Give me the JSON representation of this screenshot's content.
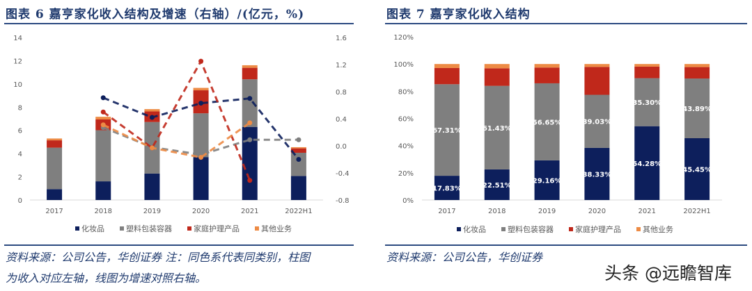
{
  "left": {
    "title": "图表 6   嘉亨家化收入结构及增速（右轴）/(亿元，%)",
    "source_line1": "资料来源：公司公告，华创证券 注：同色系代表同类别，柱图",
    "source_line2": "为收入对应左轴，线图为增速对照右轴。"
  },
  "right": {
    "title": "图表 7   嘉亨家化收入结构",
    "source": "资料来源：公司公告，华创证券"
  },
  "watermark": "头条 @远瞻智库",
  "colors": {
    "cosmetics": "#0d1f5c",
    "plastic": "#7f7f7f",
    "household": "#c0281b",
    "other": "#ed8b45"
  },
  "chart_data": [
    {
      "type": "bar+line",
      "stacked": true,
      "categories": [
        "2017",
        "2018",
        "2019",
        "2020",
        "2021",
        "2022H1"
      ],
      "series": [
        {
          "name": "化妆品",
          "values": [
            0.94,
            1.61,
            2.28,
            3.7,
            6.3,
            2.07
          ]
        },
        {
          "name": "塑料包装容器",
          "values": [
            3.57,
            4.4,
            4.44,
            3.77,
            4.1,
            2.0
          ]
        },
        {
          "name": "家庭护理产品",
          "values": [
            0.63,
            0.93,
            0.91,
            1.98,
            0.99,
            0.38
          ]
        },
        {
          "name": "其他业务",
          "values": [
            0.16,
            0.23,
            0.2,
            0.21,
            0.22,
            0.1
          ]
        }
      ],
      "growth_series": [
        {
          "values": [
            null,
            0.71,
            0.42,
            0.63,
            0.7,
            -0.2
          ]
        },
        {
          "values": [
            null,
            0.27,
            -0.02,
            -0.13,
            0.09,
            0.09
          ]
        },
        {
          "values": [
            null,
            0.5,
            -0.03,
            1.25,
            -0.51,
            null
          ]
        },
        {
          "values": [
            null,
            0.31,
            -0.03,
            -0.17,
            0.34,
            null
          ]
        }
      ],
      "ylim": [
        0,
        14
      ],
      "yticks": [
        "0",
        "2",
        "4",
        "6",
        "8",
        "10",
        "12",
        "14"
      ],
      "y2lim": [
        -0.8,
        1.6
      ],
      "y2ticks": [
        "-0.8",
        "-0.4",
        "0.0",
        "0.4",
        "0.8",
        "1.2",
        "1.6"
      ],
      "legend": "bottom",
      "grid": false
    },
    {
      "type": "bar",
      "stacked": true,
      "categories": [
        "2017",
        "2018",
        "2019",
        "2020",
        "2021",
        "2022H1"
      ],
      "series": [
        {
          "name": "化妆品",
          "values": [
            17.83,
            22.51,
            29.16,
            38.33,
            54.28,
            45.45
          ],
          "labels": [
            "17.83%",
            "22.51%",
            "29.16%",
            "38.33%",
            "54.28%",
            "45.45%"
          ]
        },
        {
          "name": "塑料包装容器",
          "values": [
            67.31,
            61.43,
            56.65,
            39.03,
            35.3,
            43.89
          ],
          "labels": [
            "67.31%",
            "61.43%",
            "56.65%",
            "39.03%",
            "35.30%",
            "43.89%"
          ]
        },
        {
          "name": "家庭护理产品",
          "values": [
            11.9,
            12.9,
            11.6,
            20.5,
            8.5,
            8.4
          ]
        },
        {
          "name": "其他业务",
          "values": [
            2.96,
            3.16,
            2.59,
            2.14,
            1.92,
            2.26
          ]
        }
      ],
      "ylim": [
        0,
        120
      ],
      "yticks": [
        "0%",
        "20%",
        "40%",
        "60%",
        "80%",
        "100%",
        "120%"
      ],
      "legend": "bottom",
      "grid": false
    }
  ]
}
